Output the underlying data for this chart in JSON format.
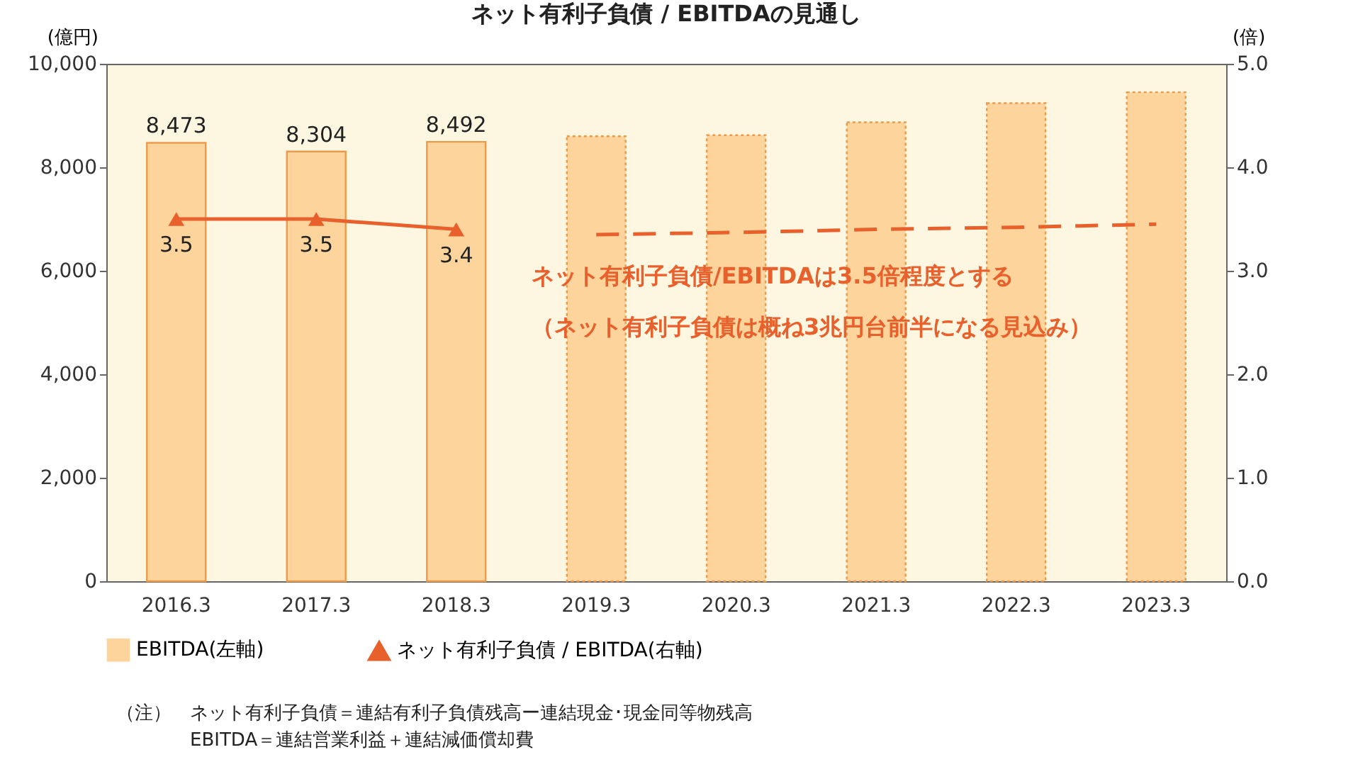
{
  "chart_data": {
    "type": "bar",
    "title": "ネット有利子負債 / EBITDAの見通し",
    "ylabel": "(億円)",
    "y2label": "(倍)",
    "categories": [
      "2016.3",
      "2017.3",
      "2018.3",
      "2019.3",
      "2020.3",
      "2021.3",
      "2022.3",
      "2023.3"
    ],
    "series": [
      {
        "name": "EBITDA(左軸)",
        "color": "#fdd59c",
        "values": [
          8473,
          8304,
          8492,
          null,
          null,
          null,
          null,
          null
        ],
        "value_labels": [
          "8,473",
          "8,304",
          "8,492",
          null,
          null,
          null,
          null,
          null
        ]
      },
      {
        "color": "#fdd59c",
        "line_style": "dashed",
        "values": [
          null,
          null,
          null,
          8600,
          8620,
          8870,
          9240,
          9450
        ]
      },
      {
        "name": "ネット有利子負債 / EBITDA(右軸)",
        "type": "line",
        "axis": "y2",
        "color": "#e8602c",
        "marker": "triangle",
        "values": [
          3.5,
          3.5,
          3.4,
          null,
          null,
          null,
          null,
          null
        ],
        "value_labels": [
          "3.5",
          "3.5",
          "3.4",
          null,
          null,
          null,
          null,
          null
        ]
      },
      {
        "type": "line",
        "axis": "y2",
        "color": "#e8602c",
        "line_style": "dashed",
        "marker": "none",
        "values": [
          null,
          null,
          null,
          3.35,
          3.37,
          3.4,
          3.42,
          3.45
        ]
      }
    ],
    "ylim": [
      0,
      10000
    ],
    "yticks": [
      0,
      {
        "value": 2000,
        "label": "2,000"
      },
      {
        "value": 4000,
        "label": "4,000"
      },
      {
        "value": 6000,
        "label": "6,000"
      },
      {
        "value": 8000,
        "label": "8,000"
      },
      {
        "value": 10000,
        "label": "10,000"
      }
    ],
    "y2lim": [
      0,
      5
    ],
    "y2ticks": [
      {
        "value": 0,
        "label": "0.0"
      },
      {
        "value": 1,
        "label": "1.0"
      },
      {
        "value": 2,
        "label": "2.0"
      },
      {
        "value": 3,
        "label": "3.0"
      },
      {
        "value": 4,
        "label": "4.0"
      },
      {
        "value": 5,
        "label": "5.0"
      }
    ],
    "legend": "bottom",
    "annotations": [
      "ネット有利子負債/EBITDAは3.5倍程度とする",
      "（ネット有利子負債は概ね3兆円台前半になる見込み）",
      "（注）　ネット有利子負債＝連結有利子負債残高ー連結現金･現金同等物残高",
      "　　　　EBITDA＝連結営業利益＋連結減価償却費"
    ]
  }
}
